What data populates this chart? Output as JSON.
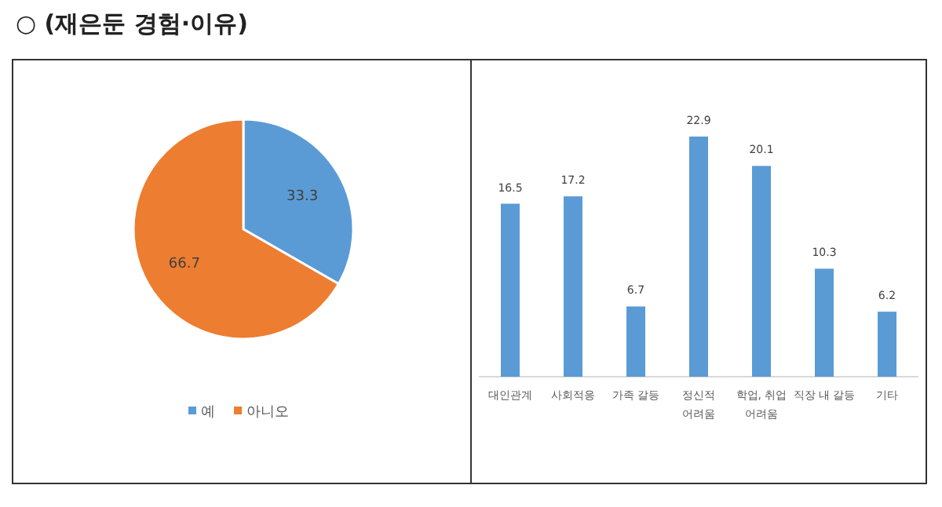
{
  "chart_data": [
    {
      "type": "pie",
      "title": "○ (재은둔 경험·이유)",
      "categories": [
        "예",
        "아니오"
      ],
      "values": [
        33.3,
        66.7
      ],
      "colors": [
        "#5b9bd5",
        "#ed7d31"
      ],
      "data_labels": true,
      "legend": "bottom"
    },
    {
      "type": "bar",
      "categories": [
        "대인관계",
        "사회적응",
        "가족 갈등",
        "정신적\n어려움",
        "학업, 취업\n어려움",
        "직장 내 갈등",
        "기타"
      ],
      "values": [
        16.5,
        17.2,
        6.7,
        22.9,
        20.1,
        10.3,
        6.2
      ],
      "color": "#5b9bd5",
      "data_labels": true
    }
  ]
}
